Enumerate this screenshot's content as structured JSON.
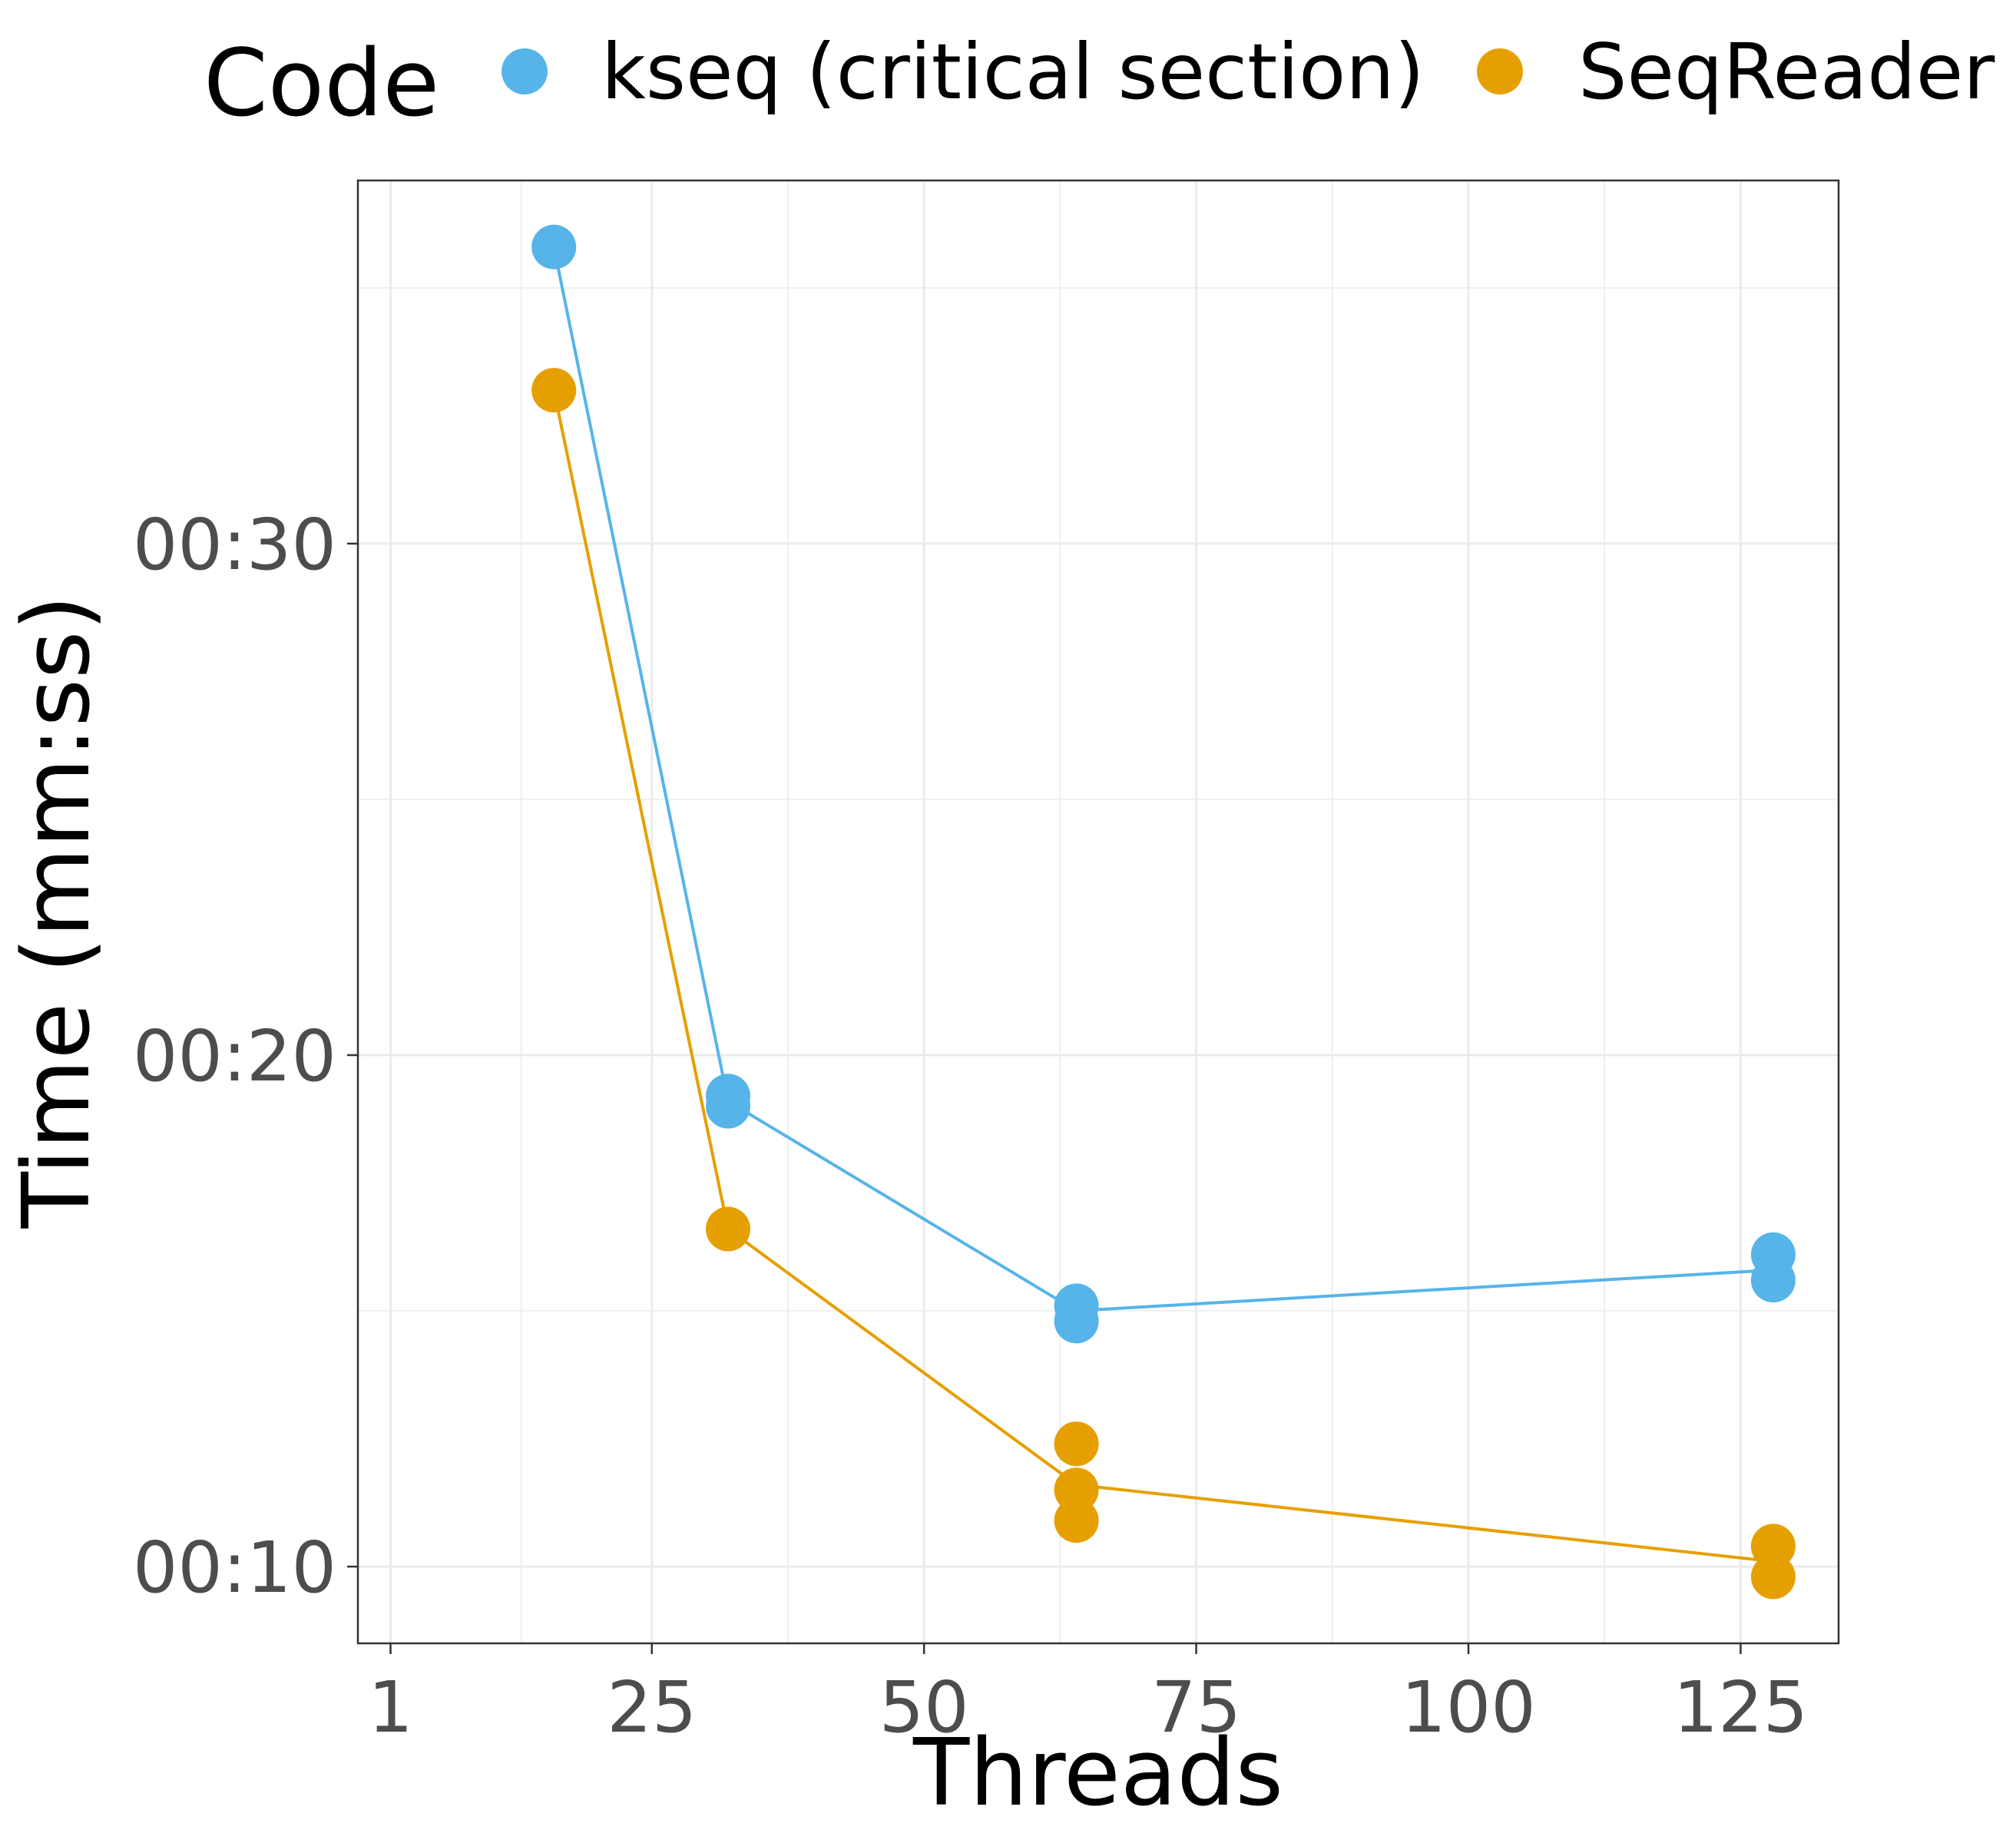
{
  "chart_data": {
    "type": "scatter",
    "xlabel": "Threads",
    "ylabel": "Time (mm:ss)",
    "legend_title": "Code",
    "legend_position": "top",
    "grid": true,
    "xlim": [
      -2,
      134
    ],
    "ylim_seconds": [
      8.5,
      37.1
    ],
    "x_ticks": [
      1,
      25,
      50,
      75,
      100,
      125
    ],
    "x_tick_labels": [
      "1",
      "25",
      "50",
      "75",
      "100",
      "125"
    ],
    "y_ticks_seconds": [
      10,
      20,
      30
    ],
    "y_tick_labels": [
      "00:10",
      "00:20",
      "00:30"
    ],
    "series": [
      {
        "name": "kseq (critical section)",
        "color": "#56B4E9",
        "points": [
          {
            "x": 16,
            "y": 35.8
          },
          {
            "x": 32,
            "y": 19.2
          },
          {
            "x": 32,
            "y": 19.0
          },
          {
            "x": 64,
            "y": 15.1
          },
          {
            "x": 64,
            "y": 14.8
          },
          {
            "x": 128,
            "y": 16.1
          },
          {
            "x": 128,
            "y": 15.6
          }
        ],
        "line": [
          {
            "x": 16,
            "y": 35.8
          },
          {
            "x": 32,
            "y": 19.1
          },
          {
            "x": 64,
            "y": 15.0
          },
          {
            "x": 128,
            "y": 15.8
          }
        ]
      },
      {
        "name": "SeqReader",
        "color": "#E69F00",
        "points": [
          {
            "x": 16,
            "y": 33.0
          },
          {
            "x": 32,
            "y": 16.6
          },
          {
            "x": 64,
            "y": 12.4
          },
          {
            "x": 64,
            "y": 11.5
          },
          {
            "x": 64,
            "y": 10.9
          },
          {
            "x": 128,
            "y": 10.4
          },
          {
            "x": 128,
            "y": 9.8
          }
        ],
        "line": [
          {
            "x": 16,
            "y": 33.0
          },
          {
            "x": 32,
            "y": 16.6
          },
          {
            "x": 64,
            "y": 11.6
          },
          {
            "x": 128,
            "y": 10.1
          }
        ]
      }
    ]
  }
}
